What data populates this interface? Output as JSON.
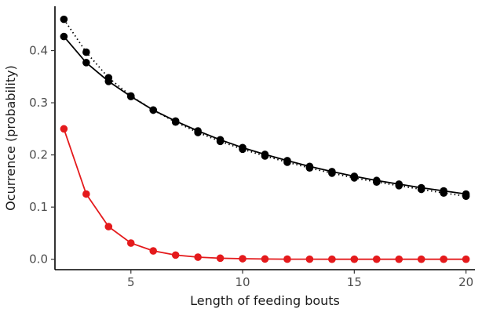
{
  "chart_data": {
    "type": "line",
    "xlabel": "Length of feeding bouts",
    "ylabel": "Ocurrence (probability)",
    "xlim": [
      1.6,
      20.4
    ],
    "ylim": [
      -0.02,
      0.485
    ],
    "x_ticks": [
      5,
      10,
      15,
      20
    ],
    "x_tick_labels": [
      "5",
      "10",
      "15",
      "20"
    ],
    "y_ticks": [
      0.0,
      0.1,
      0.2,
      0.3,
      0.4
    ],
    "y_tick_labels": [
      "0.0",
      "0.1",
      "0.2",
      "0.3",
      "0.4"
    ],
    "grid": false,
    "legend": "none",
    "series": [
      {
        "style": "solid",
        "color": "#000000",
        "x": [
          2,
          3,
          4,
          5,
          6,
          7,
          8,
          9,
          10,
          11,
          12,
          13,
          14,
          15,
          16,
          17,
          18,
          19,
          20
        ],
        "y": [
          0.427,
          0.377,
          0.341,
          0.312,
          0.286,
          0.265,
          0.246,
          0.229,
          0.214,
          0.201,
          0.189,
          0.178,
          0.168,
          0.159,
          0.151,
          0.144,
          0.137,
          0.131,
          0.125
        ]
      },
      {
        "style": "dotted",
        "color": "#000000",
        "x": [
          2,
          3,
          4,
          5,
          6,
          7,
          8,
          9,
          10,
          11,
          12,
          13,
          14,
          15,
          16,
          17,
          18,
          19,
          20
        ],
        "y": [
          0.46,
          0.397,
          0.348,
          0.313,
          0.286,
          0.263,
          0.243,
          0.226,
          0.211,
          0.198,
          0.186,
          0.175,
          0.165,
          0.156,
          0.148,
          0.141,
          0.134,
          0.127,
          0.121
        ]
      },
      {
        "style": "solid",
        "color": "#e41a1c",
        "x": [
          2,
          3,
          4,
          5,
          6,
          7,
          8,
          9,
          10,
          11,
          12,
          13,
          14,
          15,
          16,
          17,
          18,
          19,
          20
        ],
        "y": [
          0.25,
          0.125,
          0.0625,
          0.031,
          0.016,
          0.008,
          0.004,
          0.002,
          0.001,
          0.0005,
          0.0002,
          0.0001,
          0.0,
          0.0,
          0.0,
          0.0,
          0.0,
          0.0,
          0.0
        ]
      }
    ]
  }
}
